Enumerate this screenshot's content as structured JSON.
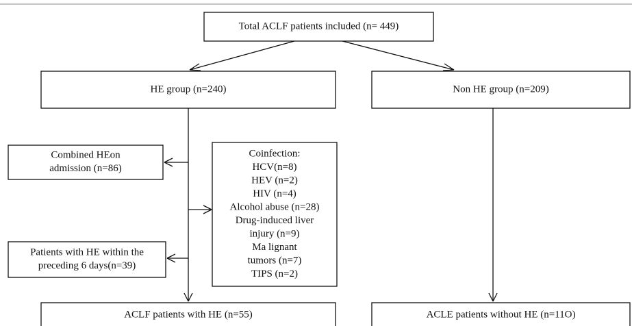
{
  "nodes": [
    {
      "lines": [
        "Total ACLF patients included (n= 449)"
      ]
    },
    {
      "lines": [
        "HE group (n=240)"
      ]
    },
    {
      "lines": [
        "Non HE group (n=209)"
      ]
    },
    {
      "lines": [
        "Combined HEon",
        "admission (n=86)"
      ]
    },
    {
      "lines": [
        "Coinfection:",
        "HCV(n=8)",
        "HEV (n=2)",
        "HIV (n=4)",
        "Alcohol abuse (n=28)",
        "Drug-induced liver",
        "injury (n=9)",
        "Ma lignant",
        "tumors (n=7)",
        "TIPS (n=2)"
      ]
    },
    {
      "lines": [
        "Patients with HE within the",
        "preceding 6 days(n=39)"
      ]
    },
    {
      "lines": [
        "ACLF patients with HE (n=55)"
      ]
    },
    {
      "lines": [
        "ACLE patients without HE (n=11O)"
      ]
    }
  ]
}
